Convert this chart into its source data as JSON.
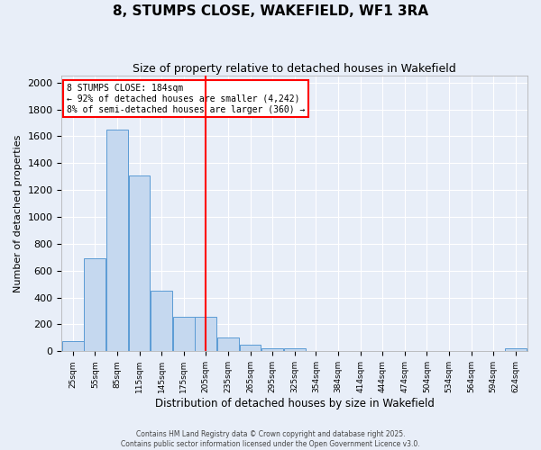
{
  "title": "8, STUMPS CLOSE, WAKEFIELD, WF1 3RA",
  "subtitle": "Size of property relative to detached houses in Wakefield",
  "xlabel": "Distribution of detached houses by size in Wakefield",
  "ylabel": "Number of detached properties",
  "bar_color": "#c5d8ef",
  "bar_edge_color": "#5b9bd5",
  "bin_centers": [
    25,
    55,
    85,
    115,
    145,
    175,
    205,
    235,
    265,
    295,
    325,
    354,
    384,
    414,
    444,
    474,
    504,
    534,
    564,
    594,
    624
  ],
  "counts": [
    75,
    690,
    1650,
    1310,
    450,
    255,
    255,
    105,
    50,
    25,
    20,
    5,
    5,
    5,
    0,
    0,
    0,
    0,
    0,
    0,
    20
  ],
  "tick_labels": [
    "25sqm",
    "55sqm",
    "85sqm",
    "115sqm",
    "145sqm",
    "175sqm",
    "205sqm",
    "235sqm",
    "265sqm",
    "295sqm",
    "325sqm",
    "354sqm",
    "384sqm",
    "414sqm",
    "444sqm",
    "474sqm",
    "504sqm",
    "534sqm",
    "564sqm",
    "594sqm",
    "624sqm"
  ],
  "ylim": [
    0,
    2050
  ],
  "yticks": [
    0,
    200,
    400,
    600,
    800,
    1000,
    1200,
    1400,
    1600,
    1800,
    2000
  ],
  "vline_x": 205,
  "vline_color": "red",
  "annotation_title": "8 STUMPS CLOSE: 184sqm",
  "annotation_line1": "← 92% of detached houses are smaller (4,242)",
  "annotation_line2": "8% of semi-detached houses are larger (360) →",
  "annotation_box_color": "#ffffff",
  "annotation_box_edge": "red",
  "background_color": "#e8eef8",
  "grid_color": "#ffffff",
  "footer1": "Contains HM Land Registry data © Crown copyright and database right 2025.",
  "footer2": "Contains public sector information licensed under the Open Government Licence v3.0."
}
